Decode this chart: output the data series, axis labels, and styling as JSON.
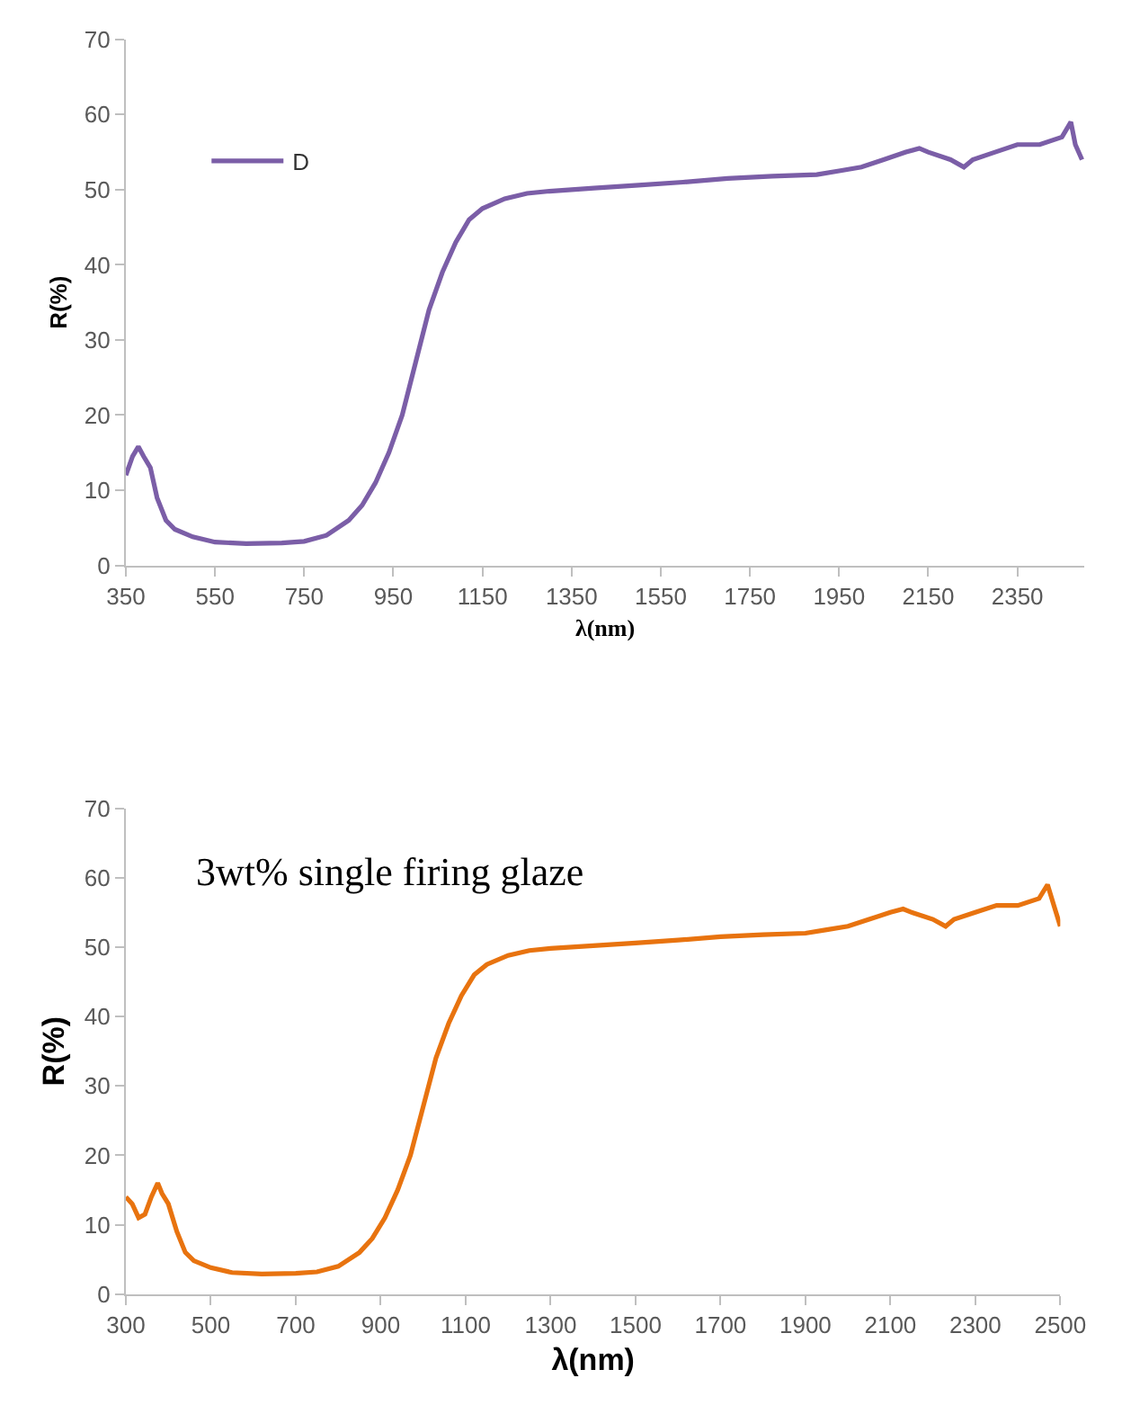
{
  "chart_data": [
    {
      "type": "line",
      "xlabel": "λ(nm)",
      "ylabel": "R(%)",
      "xlim": [
        350,
        2500
      ],
      "xticks": [
        350,
        550,
        750,
        950,
        1150,
        1350,
        1550,
        1750,
        1950,
        2150,
        2350
      ],
      "ylim": [
        0,
        70
      ],
      "yticks": [
        0,
        10,
        20,
        30,
        40,
        50,
        60,
        70
      ],
      "legend": "top left",
      "marker": "none",
      "line_style": "solid",
      "series": [
        {
          "name": "D",
          "color": "#7b5ea7",
          "x": [
            350,
            365,
            378,
            390,
            405,
            420,
            440,
            460,
            500,
            550,
            620,
            700,
            750,
            800,
            850,
            880,
            910,
            940,
            970,
            1000,
            1030,
            1060,
            1090,
            1120,
            1150,
            1200,
            1250,
            1300,
            1400,
            1500,
            1600,
            1700,
            1800,
            1900,
            1950,
            2000,
            2050,
            2100,
            2130,
            2150,
            2200,
            2230,
            2250,
            2300,
            2350,
            2400,
            2450,
            2470,
            2480,
            2495
          ],
          "values": [
            12,
            14.5,
            15.8,
            14.5,
            13,
            9,
            6,
            4.8,
            3.8,
            3.1,
            2.9,
            3.0,
            3.2,
            4,
            6,
            8,
            11,
            15,
            20,
            27,
            34,
            39,
            43,
            46,
            47.5,
            48.8,
            49.5,
            49.8,
            50.2,
            50.6,
            51,
            51.5,
            51.8,
            52,
            52.5,
            53,
            54,
            55,
            55.5,
            55,
            54,
            53,
            54,
            55,
            56,
            56,
            57,
            59,
            56,
            54
          ]
        }
      ]
    },
    {
      "type": "line",
      "xlabel": "λ(nm)",
      "ylabel": "R(%)",
      "xlim": [
        300,
        2500
      ],
      "xticks": [
        300,
        500,
        700,
        900,
        1100,
        1300,
        1500,
        1700,
        1900,
        2100,
        2300,
        2500
      ],
      "ylim": [
        0,
        70
      ],
      "yticks": [
        0,
        10,
        20,
        30,
        40,
        50,
        60,
        70
      ],
      "marker": "none",
      "line_style": "solid",
      "annotations": [
        "3wt% single firing glaze"
      ],
      "series": [
        {
          "color": "#e8730f",
          "x": [
            300,
            315,
            330,
            345,
            360,
            375,
            385,
            400,
            420,
            440,
            460,
            500,
            550,
            620,
            700,
            750,
            800,
            850,
            880,
            910,
            940,
            970,
            1000,
            1030,
            1060,
            1090,
            1120,
            1150,
            1200,
            1250,
            1300,
            1400,
            1500,
            1600,
            1700,
            1800,
            1900,
            1950,
            2000,
            2050,
            2100,
            2130,
            2150,
            2200,
            2230,
            2250,
            2300,
            2350,
            2400,
            2450,
            2470,
            2485,
            2500
          ],
          "values": [
            14,
            13,
            11,
            11.5,
            14,
            16,
            14.5,
            13,
            9,
            6,
            4.8,
            3.8,
            3.1,
            2.9,
            3.0,
            3.2,
            4,
            6,
            8,
            11,
            15,
            20,
            27,
            34,
            39,
            43,
            46,
            47.5,
            48.8,
            49.5,
            49.8,
            50.2,
            50.6,
            51,
            51.5,
            51.8,
            52,
            52.5,
            53,
            54,
            55,
            55.5,
            55,
            54,
            53,
            54,
            55,
            56,
            56,
            57,
            59,
            56,
            53
          ]
        }
      ]
    }
  ]
}
